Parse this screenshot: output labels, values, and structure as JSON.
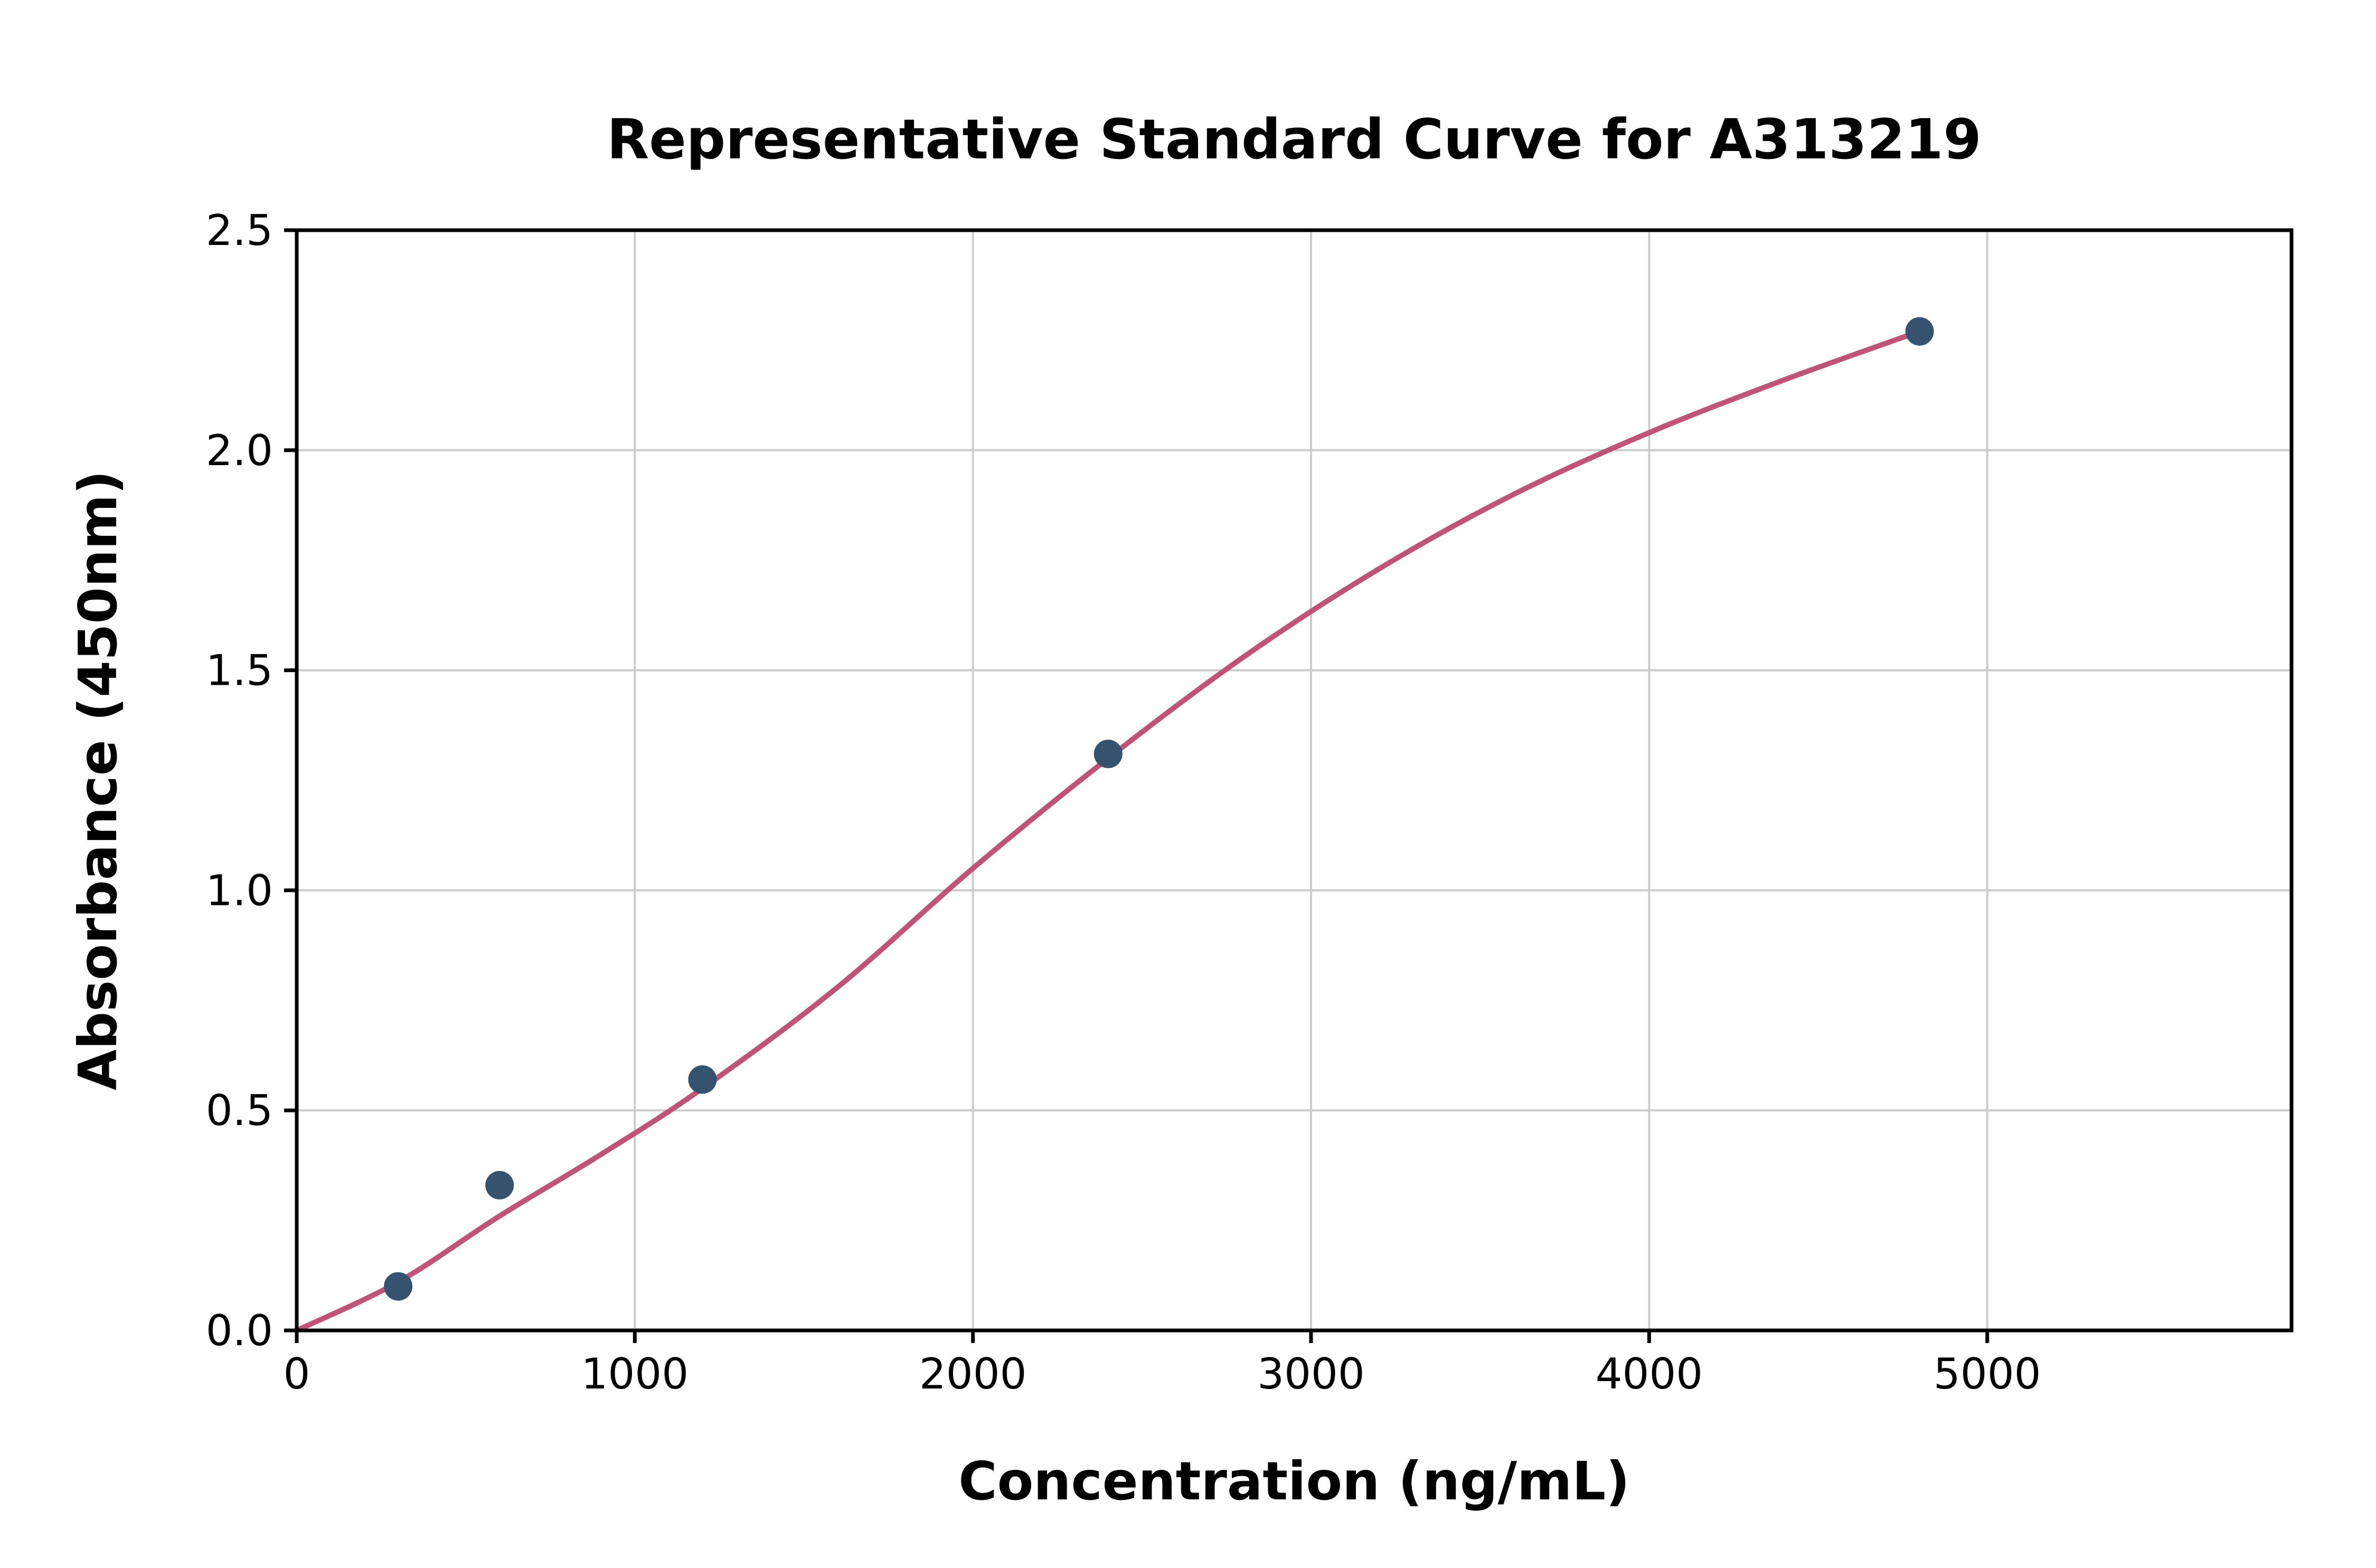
{
  "chart_data": {
    "type": "scatter",
    "title": "Representative Standard Curve for A313219",
    "xlabel": "Concentration (ng/mL)",
    "ylabel": "Absorbance (450nm)",
    "xlim": [
      0,
      5900
    ],
    "ylim": [
      0,
      2.5
    ],
    "x_ticks": [
      0,
      1000,
      2000,
      3000,
      4000,
      5000
    ],
    "y_ticks": [
      0.0,
      0.5,
      1.0,
      1.5,
      2.0,
      2.5
    ],
    "grid": true,
    "legend_position": "none",
    "series": [
      {
        "name": "standard-points",
        "type": "scatter",
        "x": [
          300,
          600,
          1200,
          2400,
          4800
        ],
        "y": [
          0.1,
          0.33,
          0.57,
          1.31,
          2.27
        ]
      },
      {
        "name": "fit-curve",
        "type": "line",
        "x": [
          0,
          300,
          600,
          900,
          1200,
          1600,
          2000,
          2400,
          2800,
          3200,
          3600,
          4000,
          4400,
          4800
        ],
        "y": [
          0.0,
          0.11,
          0.26,
          0.4,
          0.55,
          0.78,
          1.05,
          1.3,
          1.53,
          1.73,
          1.9,
          2.04,
          2.16,
          2.27
        ]
      }
    ],
    "colors": {
      "points": "#35536e",
      "curve": "#bf5478",
      "grid": "#cccccc",
      "axis": "#000000",
      "background": "#ffffff"
    }
  }
}
